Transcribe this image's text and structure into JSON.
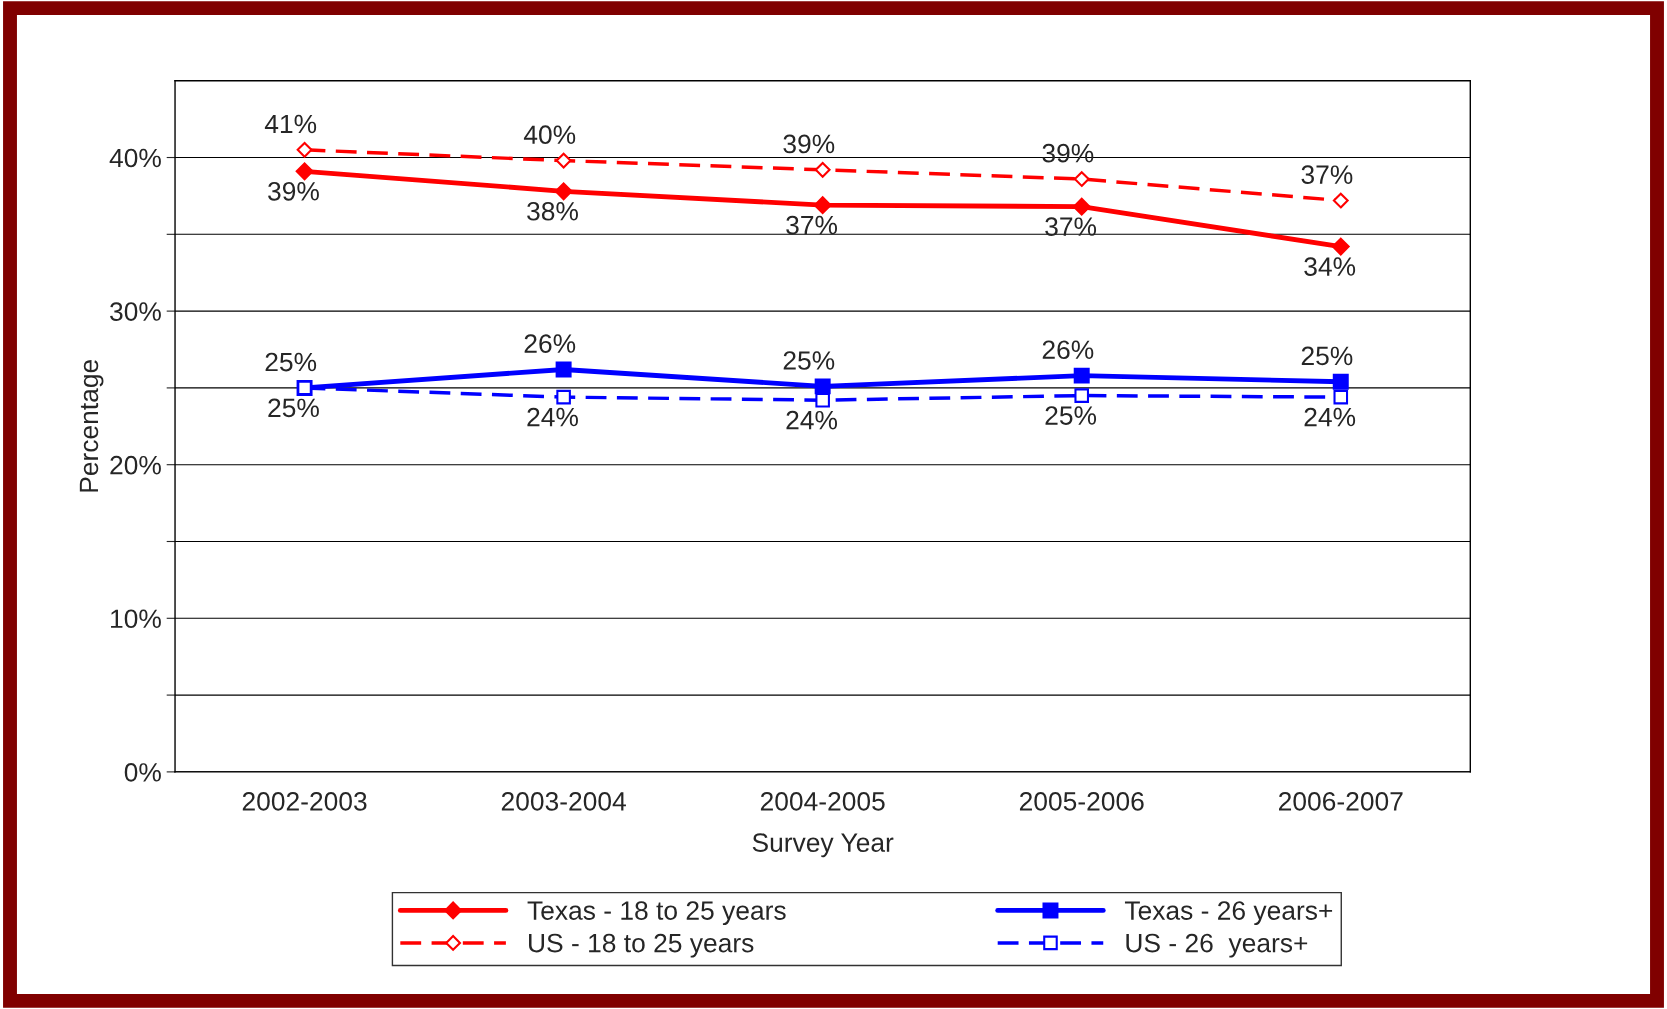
{
  "chart_data": {
    "type": "line",
    "xlabel": "Survey Year",
    "ylabel": "Percentage",
    "categories": [
      "2002-2003",
      "2003-2004",
      "2004-2005",
      "2005-2006",
      "2006-2007"
    ],
    "series": [
      {
        "name": "Texas - 18 to 25 years",
        "color": "#ff0000",
        "marker": "diamond",
        "line_style": "solid",
        "values": [
          39.1,
          37.8,
          36.9,
          36.8,
          34.2
        ],
        "value_labels": [
          "39%",
          "38%",
          "37%",
          "37%",
          "34%"
        ]
      },
      {
        "name": "US - 18 to 25 years",
        "color": "#ff0000",
        "marker": "diamond",
        "line_style": "dashed",
        "values": [
          40.5,
          39.8,
          39.2,
          38.6,
          37.2
        ],
        "value_labels": [
          "41%",
          "40%",
          "39%",
          "39%",
          "37%"
        ]
      },
      {
        "name": "Texas - 26 years+",
        "color": "#0000ff",
        "marker": "square",
        "line_style": "solid",
        "values": [
          25.0,
          26.2,
          25.1,
          25.8,
          25.4
        ],
        "value_labels": [
          "25%",
          "26%",
          "25%",
          "26%",
          "25%"
        ]
      },
      {
        "name": "US - 26  years+",
        "color": "#0000ff",
        "marker": "square",
        "line_style": "dashed",
        "values": [
          25.0,
          24.4,
          24.2,
          24.5,
          24.4
        ],
        "value_labels": [
          "25%",
          "24%",
          "24%",
          "25%",
          "24%"
        ]
      }
    ],
    "ylim": [
      0,
      45
    ],
    "yticks": [
      {
        "value": 0,
        "label": "0%"
      },
      {
        "value": 5,
        "label": null
      },
      {
        "value": 10,
        "label": "10%"
      },
      {
        "value": 15,
        "label": null
      },
      {
        "value": 20,
        "label": "20%"
      },
      {
        "value": 25,
        "label": null
      },
      {
        "value": 30,
        "label": "30%"
      },
      {
        "value": 35,
        "label": null
      },
      {
        "value": 40,
        "label": "40%"
      }
    ],
    "grid": "y",
    "legend": "bottom"
  }
}
